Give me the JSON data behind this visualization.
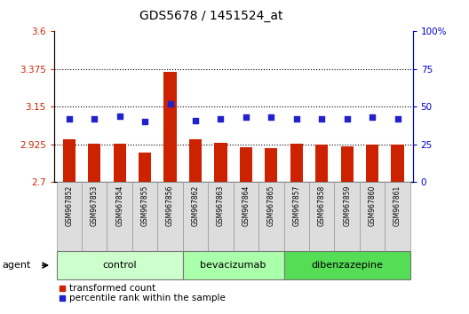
{
  "title": "GDS5678 / 1451524_at",
  "samples": [
    "GSM967852",
    "GSM967853",
    "GSM967854",
    "GSM967855",
    "GSM967856",
    "GSM967862",
    "GSM967863",
    "GSM967864",
    "GSM967865",
    "GSM967857",
    "GSM967858",
    "GSM967859",
    "GSM967860",
    "GSM967861"
  ],
  "bar_values": [
    2.955,
    2.93,
    2.93,
    2.875,
    3.36,
    2.955,
    2.935,
    2.91,
    2.905,
    2.93,
    2.925,
    2.915,
    2.925,
    2.925
  ],
  "percentile_values": [
    42,
    42,
    44,
    40,
    52,
    41,
    42,
    43,
    43,
    42,
    42,
    42,
    43,
    42
  ],
  "bar_color": "#cc2200",
  "dot_color": "#2222cc",
  "ylim_left": [
    2.7,
    3.6
  ],
  "ylim_right": [
    0,
    100
  ],
  "yticks_left": [
    2.7,
    2.925,
    3.15,
    3.375,
    3.6
  ],
  "yticks_right": [
    0,
    25,
    50,
    75,
    100
  ],
  "ytick_labels_left": [
    "2.7",
    "2.925",
    "3.15",
    "3.375",
    "3.6"
  ],
  "ytick_labels_right": [
    "0",
    "25",
    "50",
    "75",
    "100%"
  ],
  "groups": [
    {
      "label": "control",
      "start": 0,
      "end": 5,
      "color": "#ccffcc"
    },
    {
      "label": "bevacizumab",
      "start": 5,
      "end": 9,
      "color": "#aaffaa"
    },
    {
      "label": "dibenzazepine",
      "start": 9,
      "end": 14,
      "color": "#55dd55"
    }
  ],
  "agent_label": "agent",
  "legend_bar_label": "transformed count",
  "legend_dot_label": "percentile rank within the sample",
  "cell_bg": "#dddddd",
  "cell_border": "#aaaaaa",
  "plot_bg": "#ffffff"
}
